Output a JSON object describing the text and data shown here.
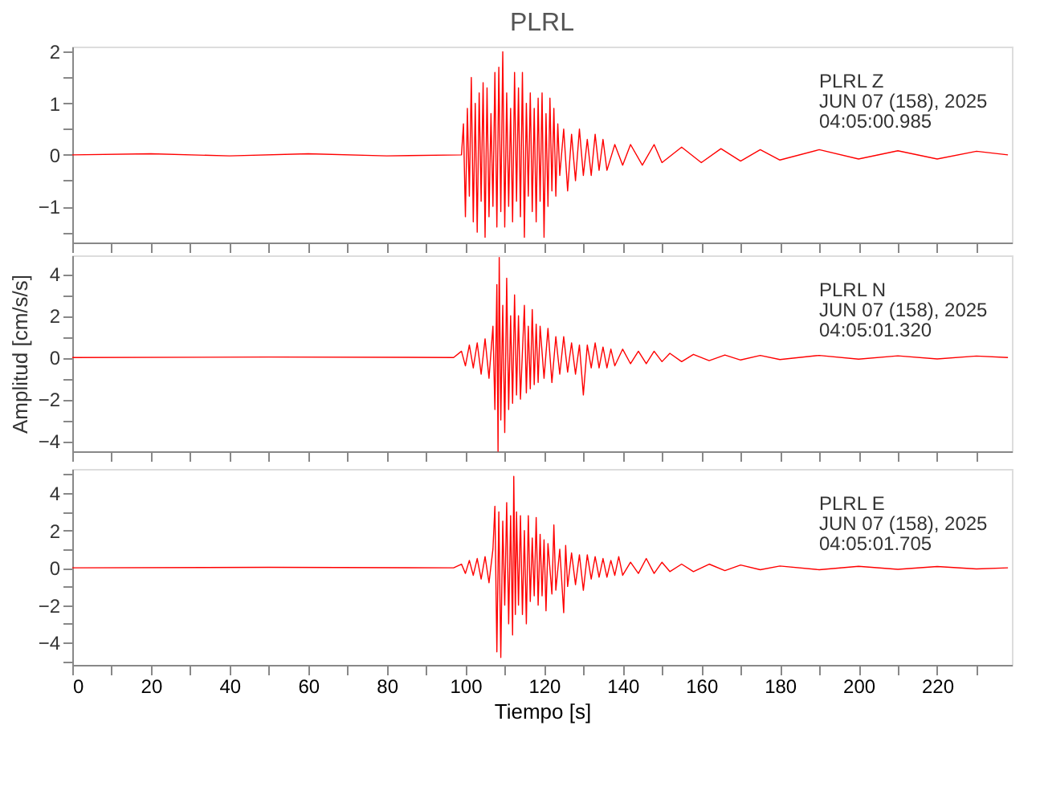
{
  "chart_data": [
    {
      "type": "line",
      "title": "PLRL",
      "annotations": [
        "PLRL   Z",
        "JUN 07 (158), 2025",
        "04:05:00.985"
      ],
      "tick_labels": "y",
      "grid": false,
      "xlim": [
        0,
        239
      ],
      "xticks": [
        0,
        {
          "value": 10,
          "label": null
        },
        20,
        {
          "value": 30,
          "label": null
        },
        40,
        {
          "value": 50,
          "label": null
        },
        60,
        {
          "value": 70,
          "label": null
        },
        80,
        {
          "value": 90,
          "label": null
        },
        100,
        {
          "value": 110,
          "label": null
        },
        120,
        {
          "value": 130,
          "label": null
        },
        140,
        {
          "value": 150,
          "label": null
        },
        160,
        {
          "value": 170,
          "label": null
        },
        180,
        {
          "value": 190,
          "label": null
        },
        200,
        {
          "value": 210,
          "label": null
        },
        220,
        {
          "value": 230,
          "label": null
        }
      ],
      "ylim": [
        -1.7,
        2.1
      ],
      "yticks": [
        {
          "value": -1.5,
          "label": null
        },
        -1,
        {
          "value": -0.5,
          "label": null
        },
        0,
        {
          "value": 0.5,
          "label": null
        },
        1,
        {
          "value": 1.5,
          "label": null
        },
        2
      ],
      "x": [
        0,
        20,
        40,
        60,
        80,
        99,
        99.5,
        100,
        100.5,
        101,
        101.5,
        102,
        102.5,
        103,
        103.5,
        104,
        104.5,
        105,
        105.5,
        106,
        106.5,
        107,
        107.5,
        108,
        108.5,
        109,
        109.5,
        110,
        110.5,
        111,
        111.5,
        112,
        112.5,
        113,
        113.5,
        114,
        114.5,
        115,
        115.5,
        116,
        116.5,
        117,
        117.5,
        118,
        118.5,
        119,
        119.5,
        120,
        120.5,
        121,
        121.5,
        122,
        122.5,
        123,
        123.5,
        124,
        125,
        126,
        127,
        128,
        129,
        130,
        131,
        132,
        133,
        134,
        135,
        136,
        138,
        140,
        142,
        145,
        148,
        150,
        155,
        160,
        165,
        170,
        175,
        180,
        190,
        200,
        210,
        220,
        230,
        238
      ],
      "series": [
        {
          "color": "#ff0000",
          "values": [
            0,
            0.02,
            -0.02,
            0.02,
            -0.02,
            0,
            0.6,
            -1.2,
            0.9,
            -0.8,
            1.5,
            -1.3,
            1.0,
            -1.5,
            1.2,
            -0.9,
            1.4,
            -1.6,
            1.3,
            -1.2,
            0.8,
            -1.0,
            1.6,
            -1.4,
            1.7,
            -1.1,
            2.0,
            -1.4,
            1.2,
            -1.0,
            0.9,
            -1.3,
            1.6,
            -0.9,
            1.3,
            -1.2,
            1.6,
            -1.6,
            1.0,
            -0.8,
            1.2,
            -1.1,
            0.9,
            -1.3,
            1.1,
            -0.9,
            1.2,
            -1.6,
            0.8,
            -1.0,
            1.1,
            -0.7,
            0.9,
            -0.8,
            0.6,
            -0.4,
            0.5,
            -0.7,
            0.4,
            -0.5,
            0.5,
            -0.4,
            0.3,
            -0.4,
            0.4,
            -0.3,
            0.3,
            -0.3,
            0.2,
            -0.2,
            0.2,
            -0.2,
            0.2,
            -0.15,
            0.15,
            -0.15,
            0.12,
            -0.12,
            0.1,
            -0.1,
            0.1,
            -0.08,
            0.08,
            -0.08,
            0.07,
            0
          ]
        }
      ]
    },
    {
      "type": "line",
      "ylabel": "Amplitud [cm/s/s]",
      "annotations": [
        "PLRL   N",
        "JUN 07 (158), 2025",
        "04:05:01.320"
      ],
      "tick_labels": "y",
      "grid": false,
      "xlim": [
        0,
        239
      ],
      "xticks": [
        0,
        {
          "value": 10,
          "label": null
        },
        20,
        {
          "value": 30,
          "label": null
        },
        40,
        {
          "value": 50,
          "label": null
        },
        60,
        {
          "value": 70,
          "label": null
        },
        80,
        {
          "value": 90,
          "label": null
        },
        100,
        {
          "value": 110,
          "label": null
        },
        120,
        {
          "value": 130,
          "label": null
        },
        140,
        {
          "value": 150,
          "label": null
        },
        160,
        {
          "value": 170,
          "label": null
        },
        180,
        {
          "value": 190,
          "label": null
        },
        200,
        {
          "value": 210,
          "label": null
        },
        220,
        {
          "value": 230,
          "label": null
        }
      ],
      "ylim": [
        -4.5,
        4.9
      ],
      "yticks": [
        -4,
        {
          "value": -3,
          "label": null
        },
        -2,
        {
          "value": -1,
          "label": null
        },
        0,
        {
          "value": 1,
          "label": null
        },
        2,
        {
          "value": 3,
          "label": null
        },
        4
      ],
      "x": [
        0,
        50,
        97,
        99,
        100,
        101,
        102,
        103,
        104,
        105,
        106,
        107,
        107.5,
        108,
        108.3,
        108.6,
        109,
        109.5,
        110,
        110.5,
        111,
        111.5,
        112,
        112.5,
        113,
        113.5,
        114,
        115,
        115.5,
        116,
        116.5,
        117,
        117.5,
        118,
        118.5,
        119,
        120,
        121,
        122,
        123,
        124,
        125,
        126,
        127,
        128,
        129,
        130,
        131,
        132,
        133,
        134,
        135,
        136,
        137,
        138,
        140,
        142,
        144,
        146,
        148,
        150,
        152,
        155,
        158,
        162,
        166,
        170,
        175,
        180,
        190,
        200,
        210,
        220,
        230,
        238
      ],
      "series": [
        {
          "color": "#ff0000",
          "values": [
            0,
            0.02,
            0,
            0.3,
            -0.4,
            0.6,
            -0.5,
            0.7,
            -0.8,
            0.9,
            -1.0,
            1.5,
            -2.5,
            3.5,
            -4.5,
            4.8,
            -3.0,
            2.5,
            -3.6,
            3.8,
            -2.5,
            2.0,
            -2.2,
            3.0,
            -1.8,
            2.0,
            -2.0,
            2.5,
            -1.7,
            1.5,
            -1.5,
            2.3,
            -1.3,
            1.6,
            -1.2,
            1.5,
            -1.0,
            1.4,
            -1.2,
            1.0,
            -0.8,
            1.0,
            -0.7,
            0.7,
            -0.8,
            0.6,
            -1.8,
            0.6,
            -0.5,
            0.7,
            -0.5,
            0.5,
            -0.5,
            0.4,
            -0.4,
            0.4,
            -0.3,
            0.3,
            -0.3,
            0.3,
            -0.2,
            0.2,
            -0.2,
            0.15,
            -0.15,
            0.12,
            -0.12,
            0.1,
            -0.1,
            0.1,
            -0.08,
            0.08,
            -0.07,
            0.07,
            0
          ]
        }
      ]
    },
    {
      "type": "line",
      "xlabel": "Tiempo [s]",
      "annotations": [
        "PLRL   E",
        "JUN 07 (158), 2025",
        "04:05:01.705"
      ],
      "grid": false,
      "xlim": [
        0,
        239
      ],
      "xticks": [
        0,
        {
          "value": 10,
          "label": null
        },
        20,
        {
          "value": 30,
          "label": null
        },
        40,
        {
          "value": 50,
          "label": null
        },
        60,
        {
          "value": 70,
          "label": null
        },
        80,
        {
          "value": 90,
          "label": null
        },
        100,
        {
          "value": 110,
          "label": null
        },
        120,
        {
          "value": 130,
          "label": null
        },
        140,
        {
          "value": 150,
          "label": null
        },
        160,
        {
          "value": 170,
          "label": null
        },
        180,
        {
          "value": 190,
          "label": null
        },
        200,
        {
          "value": 210,
          "label": null
        },
        220,
        {
          "value": 230,
          "label": null
        }
      ],
      "ylim": [
        -5.2,
        5.3
      ],
      "yticks": [
        {
          "value": -5,
          "label": null
        },
        -4,
        {
          "value": -3,
          "label": null
        },
        -2,
        {
          "value": -1,
          "label": null
        },
        0,
        {
          "value": 1,
          "label": null
        },
        2,
        {
          "value": 3,
          "label": null
        },
        4,
        {
          "value": 5,
          "label": null
        }
      ],
      "x": [
        0,
        50,
        97,
        99,
        100,
        101,
        102,
        103,
        104,
        105,
        106,
        107,
        107.5,
        108,
        108.5,
        109,
        109.5,
        110,
        110.5,
        111,
        111.5,
        112,
        112.3,
        112.7,
        113,
        113.5,
        114,
        114.5,
        115,
        115.5,
        116,
        116.5,
        117,
        117.5,
        118,
        118.5,
        119,
        119.5,
        120,
        120.5,
        121,
        122,
        122.5,
        123,
        124,
        125,
        125.5,
        126,
        127,
        128,
        129,
        130,
        131,
        132,
        133,
        134,
        135,
        136,
        137,
        138,
        139,
        140,
        142,
        144,
        146,
        148,
        150,
        152,
        155,
        158,
        162,
        166,
        170,
        175,
        180,
        190,
        200,
        210,
        220,
        230,
        238
      ],
      "series": [
        {
          "color": "#ff0000",
          "values": [
            0,
            0.03,
            0,
            0.2,
            -0.3,
            0.4,
            -0.4,
            0.5,
            -0.6,
            0.6,
            -0.8,
            1.0,
            3.3,
            -4.5,
            3.0,
            -4.8,
            2.5,
            -2.0,
            3.5,
            -3.0,
            2.8,
            -3.6,
            4.9,
            -2.5,
            3.0,
            -2.0,
            2.8,
            -2.5,
            2.0,
            -3.0,
            2.8,
            -1.8,
            1.6,
            -1.5,
            2.7,
            -2.0,
            1.8,
            -1.5,
            1.5,
            -2.3,
            1.3,
            -1.4,
            2.3,
            -1.2,
            1.0,
            -2.4,
            1.2,
            -1.0,
            0.8,
            -0.9,
            0.7,
            -1.2,
            0.7,
            -0.6,
            0.6,
            -0.5,
            0.5,
            -0.5,
            0.4,
            -0.4,
            0.6,
            -0.4,
            0.3,
            -0.3,
            0.5,
            -0.3,
            0.3,
            -0.2,
            0.2,
            -0.2,
            0.2,
            -0.15,
            0.15,
            -0.1,
            0.1,
            -0.1,
            0.08,
            -0.08,
            0.07,
            -0.06,
            0
          ]
        }
      ]
    }
  ]
}
